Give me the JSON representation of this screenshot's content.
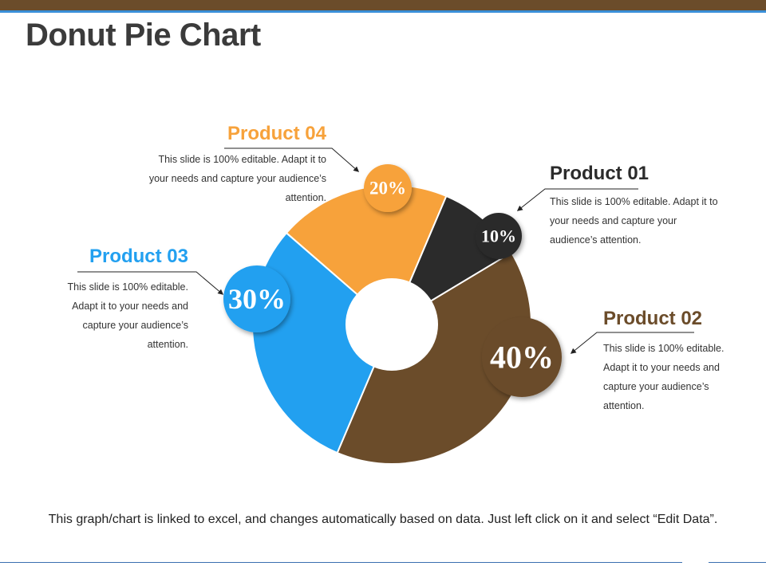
{
  "slide": {
    "title": "Donut Pie Chart",
    "footer": "This graph/chart is linked to excel, and changes automatically based on data. Just left click on it and select “Edit Data”."
  },
  "products": [
    {
      "name": "Product 01",
      "desc": "This slide is 100% editable. Adapt it to your needs and capture your audience’s attention."
    },
    {
      "name": "Product 02",
      "desc": "This slide is 100% editable. Adapt it to your needs and capture your audience’s attention."
    },
    {
      "name": "Product 03",
      "desc": "This slide is 100% editable. Adapt it to your needs and capture your audience’s attention."
    },
    {
      "name": "Product 04",
      "desc": "This slide is 100% editable. Adapt it to your needs and capture your audience’s attention."
    }
  ],
  "chart_data": {
    "type": "pie",
    "categories": [
      "Product 01",
      "Product 02",
      "Product 03",
      "Product 04"
    ],
    "values": [
      10,
      40,
      30,
      20
    ],
    "labels": [
      "10%",
      "40%",
      "30%",
      "20%"
    ],
    "colors": [
      "#2b2b2b",
      "#6b4c2a",
      "#22a0f0",
      "#f7a23b"
    ]
  }
}
